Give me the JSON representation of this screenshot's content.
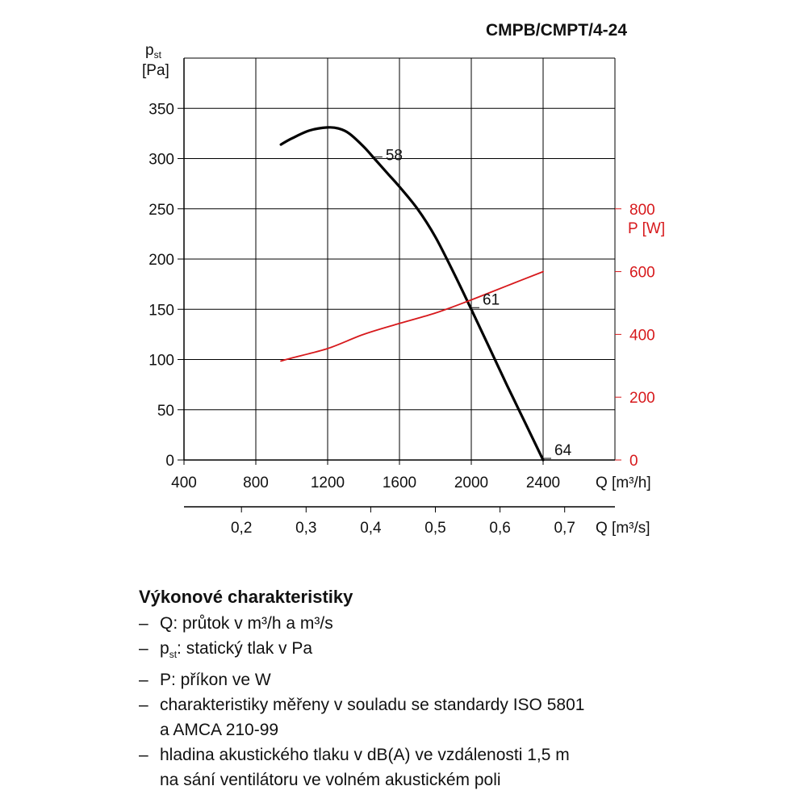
{
  "chart_data": {
    "type": "line",
    "title": "CMPB/CMPT/4-24",
    "y_label_main": "p",
    "y_label_sub": "st",
    "y_label_unit": "[Pa]",
    "y2_label": "P [W]",
    "x_label": "Q [m³/h]",
    "x2_label": "Q [m³/s]",
    "x_ticks": [
      "400",
      "800",
      "1200",
      "1600",
      "2000",
      "2400"
    ],
    "x_tick_values": [
      400,
      800,
      1200,
      1600,
      2000,
      2400
    ],
    "x2_ticks": [
      "0,2",
      "0,3",
      "0,4",
      "0,5",
      "0,6",
      "0,7"
    ],
    "x2_tick_values": [
      0.2,
      0.3,
      0.4,
      0.5,
      0.6,
      0.7
    ],
    "y_ticks": [
      "0",
      "50",
      "100",
      "150",
      "200",
      "250",
      "300",
      "350"
    ],
    "y_tick_values": [
      0,
      50,
      100,
      150,
      200,
      250,
      300,
      350
    ],
    "y2_ticks": [
      "0",
      "200",
      "400",
      "600",
      "800"
    ],
    "y2_tick_values": [
      0,
      200,
      400,
      600,
      800
    ],
    "xlim": [
      400,
      2800
    ],
    "ylim": [
      0,
      400
    ],
    "y2lim": [
      0,
      1280
    ],
    "grid": true,
    "series": [
      {
        "axis": "left",
        "color": "#000000",
        "x": [
          940,
          1000,
          1100,
          1200,
          1260,
          1320,
          1400,
          1460,
          1540,
          1600,
          1700,
          1800,
          1900,
          2000,
          2100,
          2200,
          2300,
          2400
        ],
        "y": [
          314,
          320,
          328,
          331,
          330,
          325,
          312,
          300,
          284,
          272,
          250,
          222,
          187,
          150,
          112,
          74,
          37,
          0
        ]
      },
      {
        "axis": "right",
        "color": "#d7191c",
        "x": [
          940,
          1000,
          1200,
          1400,
          1600,
          1800,
          2000,
          2200,
          2400
        ],
        "y": [
          315,
          325,
          355,
          400,
          435,
          468,
          510,
          555,
          600
        ]
      }
    ],
    "annotations": [
      {
        "text": "58",
        "x": 1460,
        "y": 300
      },
      {
        "text": "61",
        "x": 2000,
        "y": 150
      },
      {
        "text": "64",
        "x": 2400,
        "y": 0
      }
    ]
  },
  "legend": {
    "heading": "Výkonové charakteristiky",
    "items": [
      {
        "dash": "–",
        "text": "Q: průtok v m³/h a m³/s"
      },
      {
        "dash": "–",
        "text_main": "p",
        "text_sub": "st",
        "text_rest": ": statický tlak v Pa"
      },
      {
        "dash": "–",
        "text": "P: příkon ve W"
      },
      {
        "dash": "–",
        "text": "charakteristiky měřeny v souladu se standardy ISO 5801\na AMCA 210-99"
      },
      {
        "dash": "–",
        "text": "hladina akustického tlaku v dB(A) ve vzdálenosti 1,5 m\nna sání ventilátoru ve volném akustickém poli"
      }
    ]
  }
}
